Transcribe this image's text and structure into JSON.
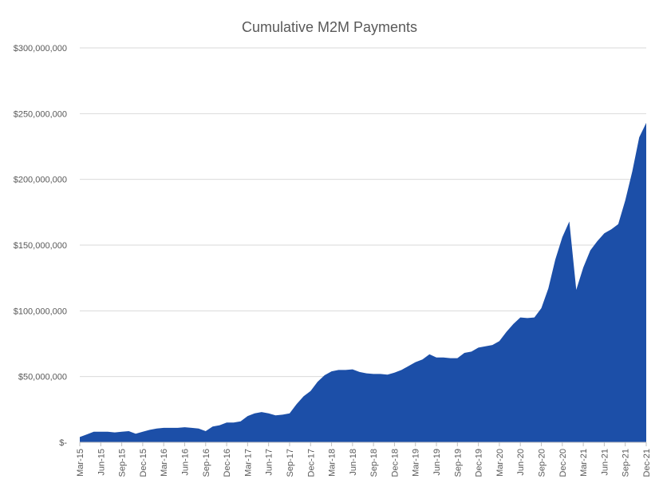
{
  "chart_data": {
    "type": "area",
    "title": "Cumulative M2M Payments",
    "xlabel": "",
    "ylabel": "",
    "ylim": [
      0,
      300000000
    ],
    "grid": true,
    "legend": "none",
    "color": "#1c4fa8",
    "y_ticks": [
      {
        "value": 0,
        "label": "$-"
      },
      {
        "value": 50000000,
        "label": "$50,000,000"
      },
      {
        "value": 100000000,
        "label": "$100,000,000"
      },
      {
        "value": 150000000,
        "label": "$150,000,000"
      },
      {
        "value": 200000000,
        "label": "$200,000,000"
      },
      {
        "value": 250000000,
        "label": "$250,000,000"
      },
      {
        "value": 300000000,
        "label": "$300,000,000"
      }
    ],
    "x_tick_labels": [
      "Mar-15",
      "Jun-15",
      "Sep-15",
      "Dec-15",
      "Mar-16",
      "Jun-16",
      "Sep-16",
      "Dec-16",
      "Mar-17",
      "Jun-17",
      "Sep-17",
      "Dec-17",
      "Mar-18",
      "Jun-18",
      "Sep-18",
      "Dec-18",
      "Mar-19",
      "Jun-19",
      "Sep-19",
      "Dec-19",
      "Mar-20",
      "Jun-20",
      "Sep-20",
      "Dec-20",
      "Mar-21",
      "Jun-21",
      "Sep-21",
      "Dec-21"
    ],
    "x_tick_every_months": 3,
    "start": "Mar-15",
    "values_millions": [
      4,
      6,
      8,
      8,
      8,
      7.5,
      8,
      8.5,
      6.5,
      8,
      9.5,
      10.5,
      11,
      11,
      11,
      11.5,
      11,
      10.5,
      8.5,
      12,
      13,
      15,
      15,
      16,
      20,
      22,
      23,
      22,
      20.5,
      21,
      22,
      29,
      35,
      39,
      46,
      51,
      54,
      55,
      55,
      55.5,
      53.5,
      52.5,
      52,
      52,
      51.5,
      53,
      55,
      58,
      61,
      63,
      67,
      64.5,
      64.5,
      64,
      64,
      68,
      69,
      72,
      73,
      74,
      77,
      84,
      90,
      95,
      94.5,
      95,
      102,
      117,
      139,
      156,
      168,
      116,
      133,
      146,
      153,
      159,
      162,
      166,
      184,
      206,
      232,
      243
    ]
  }
}
